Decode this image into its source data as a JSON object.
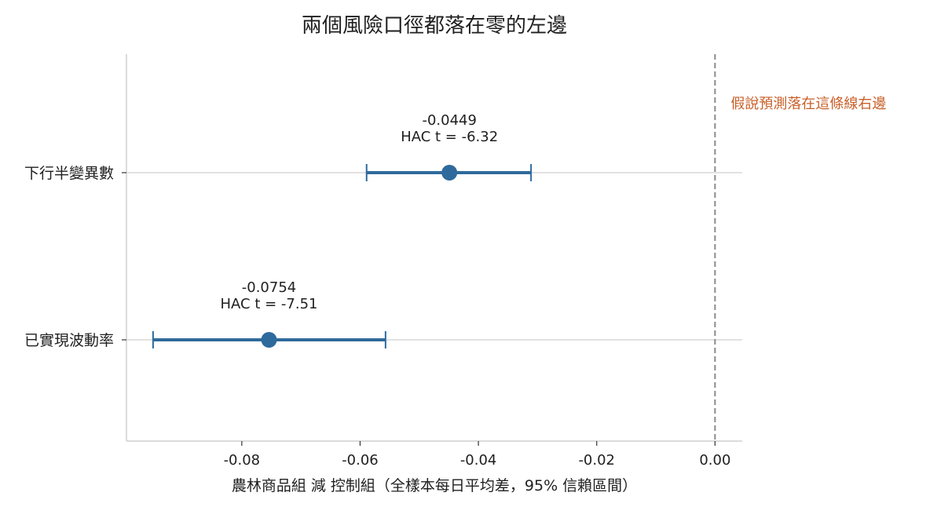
{
  "chart_data": {
    "type": "forest",
    "title": "兩個風險口徑都落在零的左邊",
    "xlabel": "農林商品組 減 控制組（全樣本每日平均差，95% 信賴區間）",
    "ylabel": "",
    "xlim": [
      -0.0995,
      0.0046
    ],
    "x_ticks": [
      -0.08,
      -0.06,
      -0.04,
      -0.02,
      0.0
    ],
    "x_tick_labels": [
      "-0.08",
      "-0.06",
      "-0.04",
      "-0.02",
      "0.00"
    ],
    "grid": "horizontal lines at each category",
    "categories": [
      "下行半變異數",
      "已實現波動率"
    ],
    "points": [
      {
        "category": "下行半變異數",
        "estimate": -0.0449,
        "ci_low": -0.0589,
        "ci_high": -0.0311,
        "label_value": "-0.0449",
        "label_t": "HAC t = -6.32"
      },
      {
        "category": "已實現波動率",
        "estimate": -0.0754,
        "ci_low": -0.095,
        "ci_high": -0.0557,
        "label_value": "-0.0754",
        "label_t": "HAC t = -7.51"
      }
    ],
    "reference_line": {
      "x": 0.0,
      "label": "假說預測落在這條線右邊",
      "style": "dashed"
    }
  },
  "colors": {
    "series": "#2f6a9c",
    "reference_line": "#8a8a8a",
    "reference_label": "#c8602a",
    "grid": "#d9d9d9",
    "axis": "#cfcfcf",
    "text": "#1f1f1f"
  }
}
